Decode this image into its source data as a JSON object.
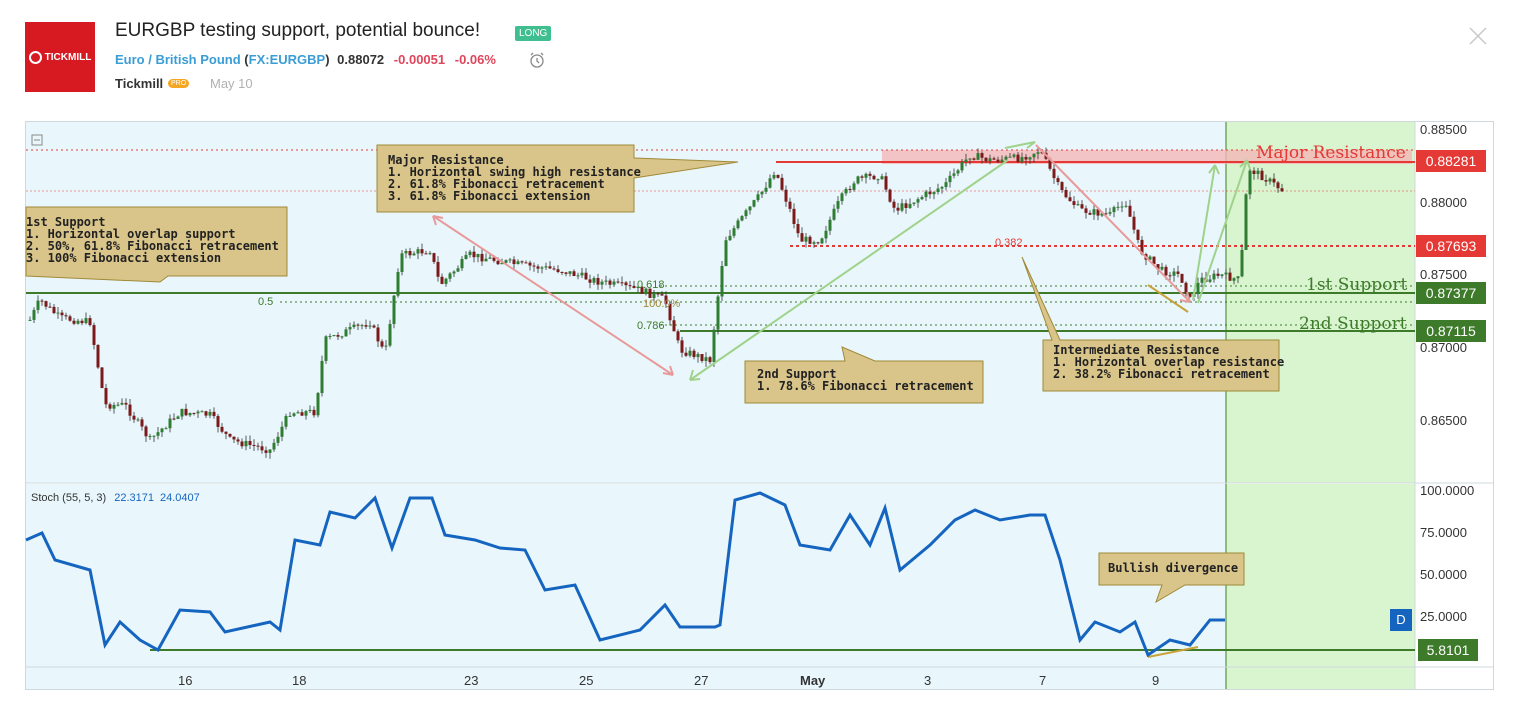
{
  "header": {
    "logo_text": "TICKMILL",
    "title": "EURGBP testing support, potential bounce!",
    "badge": "LONG",
    "instrument": "Euro / British Pound",
    "symbol_open": "(",
    "symbol": "FX:EURGBP",
    "symbol_close": ")",
    "price": "0.88072",
    "change": "-0.00051",
    "change_pct": "-0.06%",
    "author": "Tickmill",
    "author_badge": "PRO",
    "date": "May 10"
  },
  "colors": {
    "brand": "#d71921",
    "long_badge": "#3fbf8f",
    "resistance": "#e53935",
    "support": "#3d7a2a",
    "stoch_line": "#1565c0",
    "callout_fill": "#d9c58a",
    "zone_fill": "#d8f5d0"
  },
  "price_axis": {
    "ticks": [
      "0.88500",
      "0.88000",
      "0.87500",
      "0.87000",
      "0.86500"
    ],
    "labels": [
      {
        "text": "0.88281",
        "color": "#e53935"
      },
      {
        "text": "0.87693",
        "color": "#e53935"
      },
      {
        "text": "0.87377",
        "color": "#3d7a2a"
      },
      {
        "text": "0.87115",
        "color": "#3d7a2a"
      }
    ]
  },
  "stoch_axis": {
    "ticks": [
      "100.0000",
      "75.0000",
      "50.0000",
      "25.0000"
    ],
    "label": "5.8101"
  },
  "time_axis": [
    "16",
    "18",
    "23",
    "25",
    "27",
    "May",
    "3",
    "7",
    "9"
  ],
  "levels": {
    "major_resistance": "Major Resistance",
    "first_support": "1st Support",
    "second_support": "2nd Support"
  },
  "fib_labels": [
    "0.5",
    "0.618",
    "100.0%",
    "0.786",
    "0.382"
  ],
  "callouts": {
    "major": "Major Resistance\n1. Horizontal swing high resistance\n2. 61.8% Fibonacci retracement\n3. 61.8% Fibonacci extension",
    "first": "1st Support\n1. Horizontal overlap support\n2. 50%, 61.8% Fibonacci retracement\n3. 100% Fibonacci extension",
    "second": "2nd Support\n1. 78.6% Fibonacci retracement",
    "intermediate": "Intermediate Resistance\n1. Horizontal overlap resistance\n2. 38.2% Fibonacci retracement",
    "divergence": "Bullish divergence"
  },
  "stoch": {
    "name": "Stoch (55, 5, 3)",
    "k": "22.3171",
    "d": "24.0407",
    "d_button": "D"
  }
}
